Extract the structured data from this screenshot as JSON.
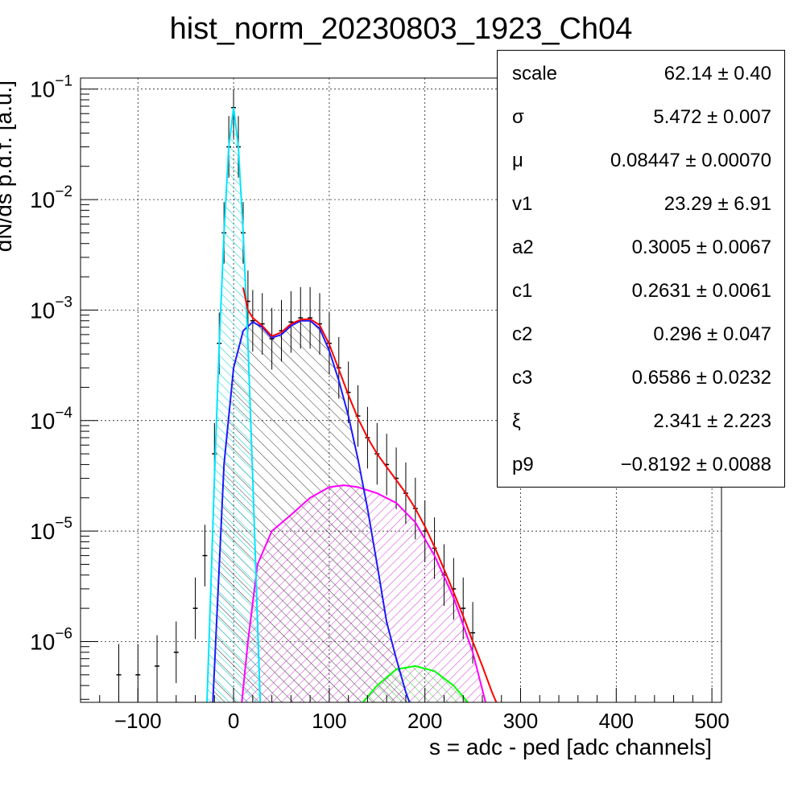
{
  "chart_data": {
    "type": "line",
    "title": "hist_norm_20230803_1923_Ch04",
    "xlabel": "s = adc - ped [adc channels]",
    "ylabel": "dN/ds p.d.f. [a.u.]",
    "xlim": [
      -160,
      510
    ],
    "ylim_log10": [
      -6.55,
      -0.9
    ],
    "yscale": "log",
    "grid": true,
    "x_ticks": [
      -100,
      0,
      100,
      200,
      300,
      400,
      500
    ],
    "x_tick_labels": [
      "−100",
      "0",
      "100",
      "200",
      "300",
      "400",
      "500"
    ],
    "y_ticks_log10": [
      -1,
      -2,
      -3,
      -4,
      -5,
      -6
    ],
    "y_tick_labels": [
      {
        "base": "10",
        "exp": "−1"
      },
      {
        "base": "10",
        "exp": "−2"
      },
      {
        "base": "10",
        "exp": "−3"
      },
      {
        "base": "10",
        "exp": "−4"
      },
      {
        "base": "10",
        "exp": "−5"
      },
      {
        "base": "10",
        "exp": "−6"
      }
    ],
    "series": [
      {
        "key": "data",
        "color": "#000000",
        "style": "histogram-errorbars",
        "x": [
          -120,
          -100,
          -80,
          -60,
          -40,
          -30,
          -20,
          -15,
          -10,
          -5,
          0,
          5,
          10,
          15,
          20,
          30,
          40,
          50,
          60,
          70,
          80,
          90,
          100,
          110,
          120,
          130,
          140,
          150,
          160,
          170,
          180,
          190,
          200,
          210,
          220,
          230,
          240,
          250
        ],
        "y": [
          5e-07,
          5e-07,
          6e-07,
          8e-07,
          2e-06,
          6e-06,
          5e-05,
          0.0005,
          0.005,
          0.03,
          0.068,
          0.03,
          0.005,
          0.0012,
          0.0008,
          0.00075,
          0.00055,
          0.00065,
          0.00078,
          0.00085,
          0.00085,
          0.00075,
          0.0005,
          0.0003,
          0.00018,
          0.00011,
          7e-05,
          5e-05,
          4e-05,
          3e-05,
          2.2e-05,
          1.6e-05,
          1e-05,
          7e-06,
          4e-06,
          3e-06,
          2e-06,
          1.2e-06
        ]
      },
      {
        "key": "total_fit",
        "color": "#ff0000",
        "style": "line",
        "x": [
          10,
          15,
          20,
          30,
          40,
          50,
          60,
          70,
          80,
          90,
          100,
          110,
          120,
          130,
          140,
          150,
          160,
          170,
          180,
          190,
          200,
          210,
          220,
          230,
          240,
          250,
          260,
          270,
          280
        ],
        "y": [
          0.0016,
          0.001,
          0.00085,
          0.00072,
          0.00058,
          0.00063,
          0.00075,
          0.00082,
          0.00083,
          0.00073,
          0.00049,
          0.00029,
          0.00017,
          0.000105,
          7e-05,
          5e-05,
          3.8e-05,
          2.9e-05,
          2.2e-05,
          1.6e-05,
          1.1e-05,
          7.2e-06,
          4.5e-06,
          2.8e-06,
          1.7e-06,
          1e-06,
          6e-07,
          3.5e-07,
          2.2e-07
        ]
      },
      {
        "key": "pedestal",
        "color": "#00e5ff",
        "style": "line",
        "x": [
          -28,
          -25,
          -20,
          -15,
          -10,
          -5,
          0,
          5,
          10,
          15,
          20,
          25,
          28
        ],
        "y": [
          2.5e-07,
          1.5e-06,
          3e-05,
          0.0005,
          0.005,
          0.03,
          0.068,
          0.03,
          0.005,
          0.0005,
          3e-05,
          1.5e-06,
          2.5e-07
        ]
      },
      {
        "key": "single_pe",
        "color": "#1a1aff",
        "style": "line",
        "x": [
          -22,
          -10,
          0,
          10,
          20,
          30,
          40,
          50,
          60,
          70,
          80,
          90,
          100,
          110,
          120,
          130,
          140,
          150,
          160,
          170,
          180,
          190
        ],
        "y": [
          2.5e-07,
          4e-05,
          0.0003,
          0.00065,
          0.00078,
          0.0007,
          0.00056,
          0.0006,
          0.00072,
          0.0008,
          0.0008,
          0.00068,
          0.00043,
          0.00023,
          0.00011,
          4.5e-05,
          1.6e-05,
          5e-06,
          1.5e-06,
          7e-07,
          3.5e-07,
          2e-07
        ]
      },
      {
        "key": "two_pe",
        "color": "#ff00ff",
        "style": "line",
        "x": [
          8,
          15,
          25,
          40,
          60,
          80,
          100,
          115,
          130,
          150,
          170,
          190,
          210,
          230,
          250,
          265
        ],
        "y": [
          2.5e-07,
          1e-06,
          5e-06,
          1e-05,
          1.4e-05,
          2e-05,
          2.5e-05,
          2.6e-05,
          2.5e-05,
          2.2e-05,
          1.8e-05,
          1.2e-05,
          6e-06,
          2.5e-06,
          8e-07,
          2.5e-07
        ]
      },
      {
        "key": "three_pe",
        "color": "#00ff00",
        "style": "line",
        "x": [
          130,
          150,
          170,
          190,
          210,
          230,
          250
        ],
        "y": [
          2.5e-07,
          4e-07,
          5.6e-07,
          6e-07,
          5.4e-07,
          4e-07,
          2.5e-07
        ]
      }
    ],
    "stats": [
      {
        "name": "scale",
        "value": "62.14 ± 0.40"
      },
      {
        "name": "σ",
        "value": "5.472 ± 0.007"
      },
      {
        "name": "μ",
        "value": "0.08447 ± 0.00070"
      },
      {
        "name": "v1",
        "value": "23.29 ± 6.91"
      },
      {
        "name": "a2",
        "value": "0.3005 ± 0.0067"
      },
      {
        "name": "c1",
        "value": "0.2631 ± 0.0061"
      },
      {
        "name": "c2",
        "value": "0.296 ± 0.047"
      },
      {
        "name": "c3",
        "value": "0.6586 ± 0.0232"
      },
      {
        "name": "ξ",
        "value": "2.341 ± 2.223"
      },
      {
        "name": "p9",
        "value": "−0.8192 ± 0.0088"
      }
    ]
  }
}
